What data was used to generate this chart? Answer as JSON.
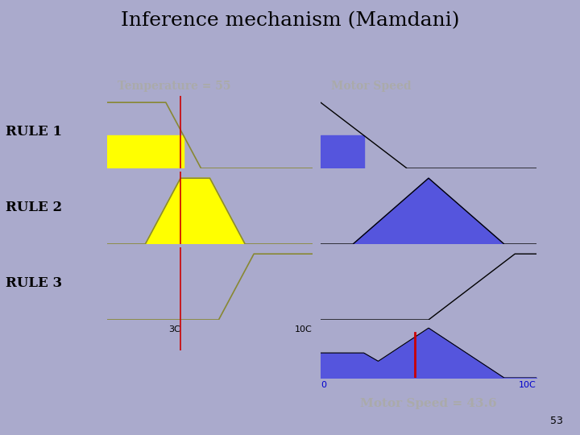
{
  "title": "Inference mechanism (Mamdani)",
  "bg_color": "#aaaacc",
  "slide_number": "53",
  "temp_value": 55,
  "motor_speed_value": 43.6,
  "temp_header": "Temperature = 55",
  "motor_header": "Motor Speed",
  "motor_result": "Motor Speed = 43.6",
  "rule_labels": [
    "RULE 1",
    "RULE 2",
    "RULE 3"
  ],
  "header_bg": "#000000",
  "header_fg": "#aaaaaa",
  "panel_bg": "#dddddd",
  "cell_bg": "#ffffff",
  "yellow_fill": "#ffff00",
  "blue_fill": "#5555dd",
  "line_color_temp": "#888833",
  "line_color_motor": "#000000",
  "red_line": "#cc0000",
  "mu1": 0.5,
  "mu2": 1.0,
  "mu3": 0.0,
  "temp_xlim": [
    30,
    100
  ],
  "motor_xlim": [
    0,
    100
  ]
}
